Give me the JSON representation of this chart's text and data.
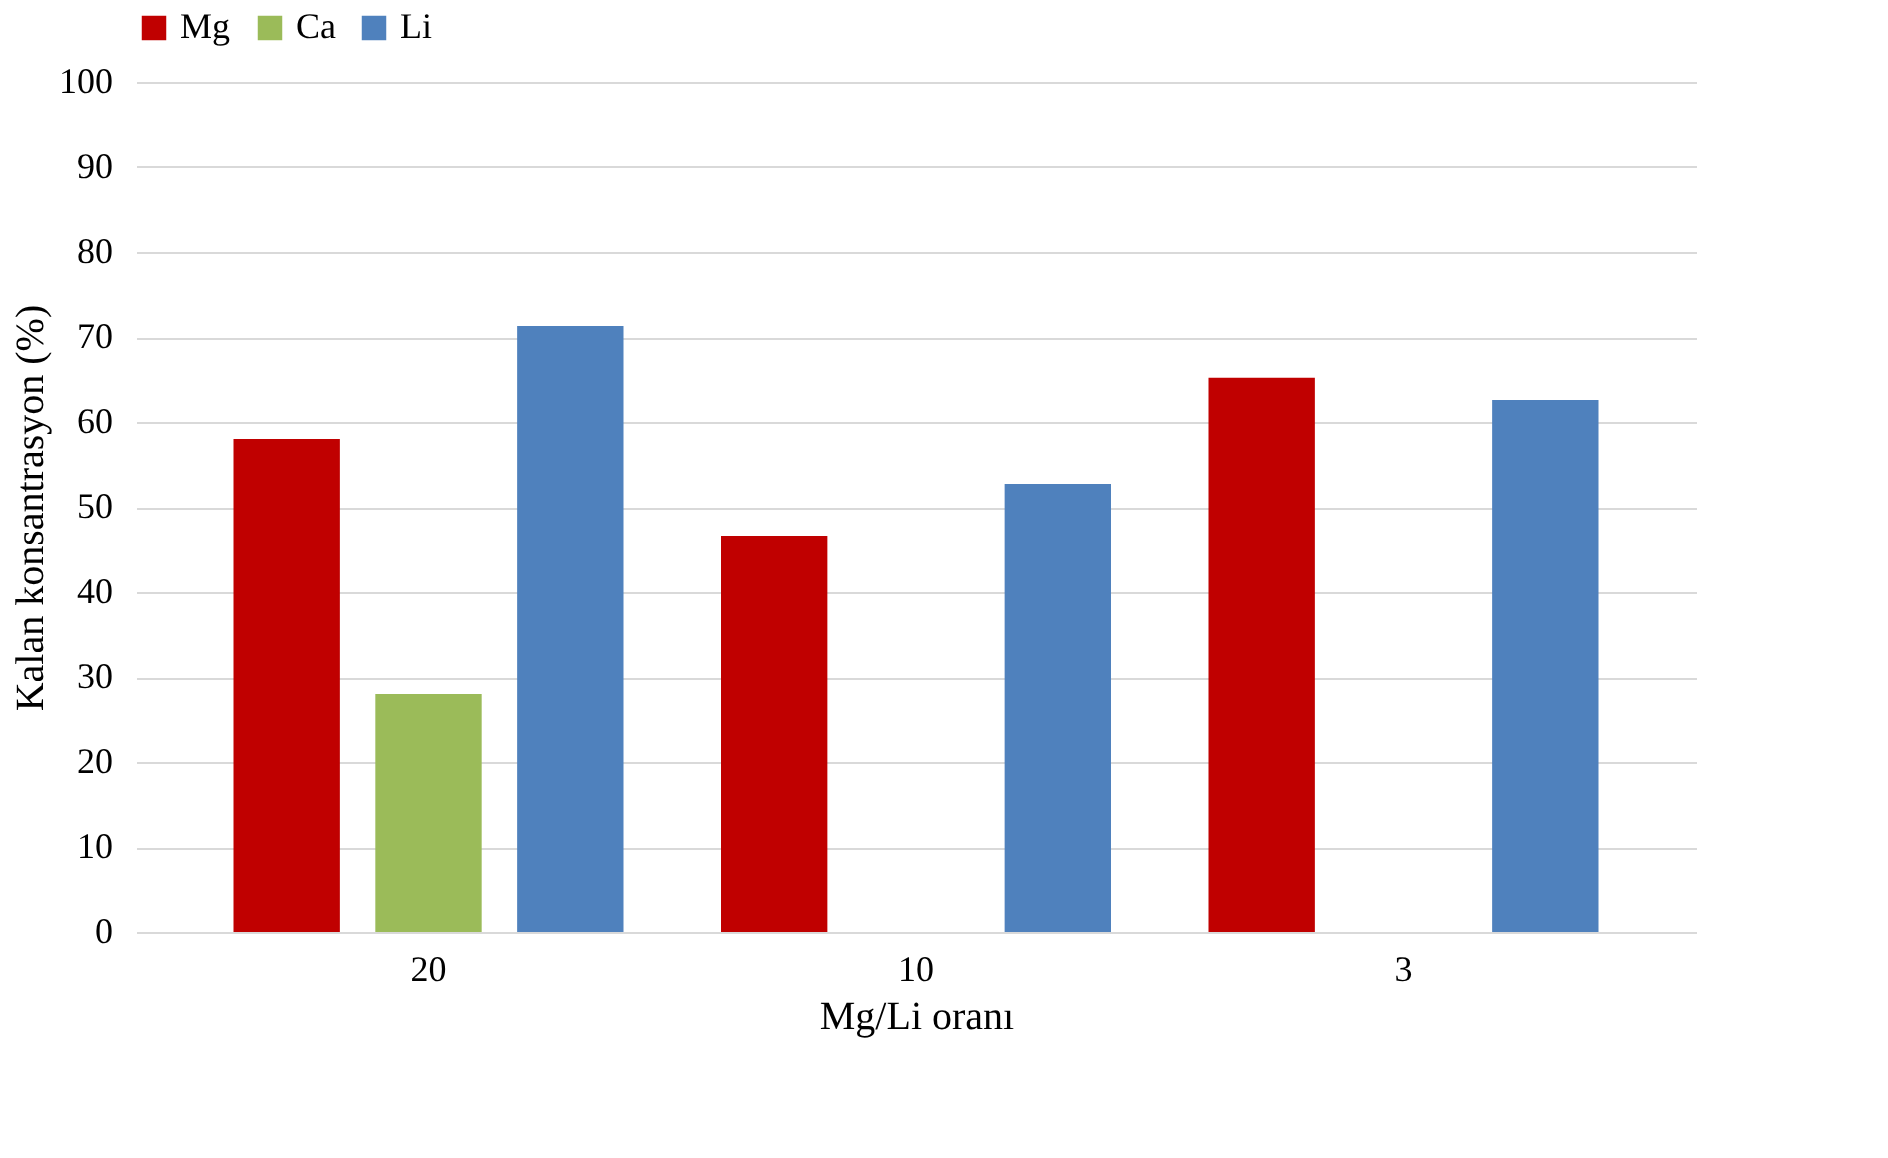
{
  "chart_data": {
    "type": "bar",
    "xlabel": "Mg/Li oranı",
    "ylabel": "Kalan konsantrasyon (%)",
    "categories": [
      "20",
      "10",
      "3"
    ],
    "series": [
      {
        "name": "Mg",
        "color": "#c00000",
        "values": [
          58,
          46.6,
          65.2
        ]
      },
      {
        "name": "Ca",
        "color": "#9bbb59",
        "values": [
          28,
          null,
          null
        ]
      },
      {
        "name": "Li",
        "color": "#4f81bd",
        "values": [
          71.3,
          52.7,
          62.6
        ]
      }
    ],
    "ylim": [
      0,
      100
    ],
    "yticks": [
      0,
      10,
      20,
      30,
      40,
      50,
      60,
      70,
      80,
      90,
      100
    ],
    "grid": "y",
    "legend": "top"
  }
}
